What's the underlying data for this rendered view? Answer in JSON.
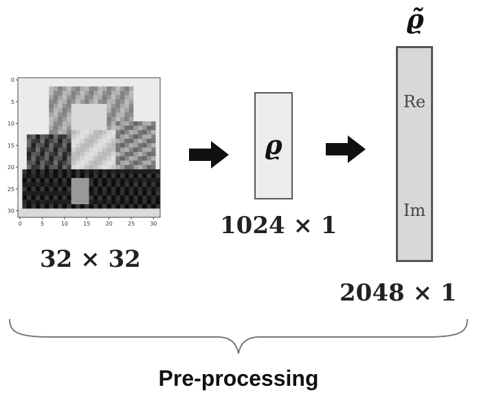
{
  "input": {
    "axis_ticks_y": [
      "0",
      "5",
      "10",
      "15",
      "20",
      "25",
      "30"
    ],
    "axis_ticks_x": [
      "0",
      "5",
      "10",
      "15",
      "20",
      "25",
      "30"
    ],
    "dimension_label": "32 × 32"
  },
  "vector": {
    "symbol": "ϱ",
    "dimension_label": "1024 × 1"
  },
  "output": {
    "symbol": "ϱ̃",
    "real_label": "Re",
    "imag_label": "Im",
    "dimension_label": "2048 × 1"
  },
  "caption": "Pre-processing"
}
